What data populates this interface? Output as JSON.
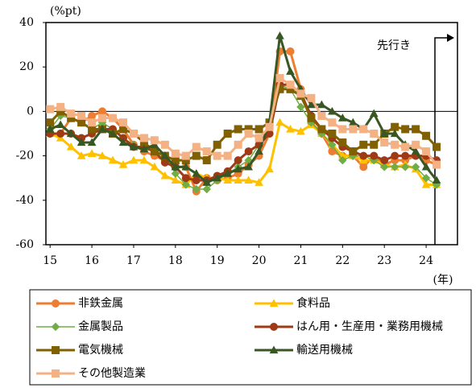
{
  "chart_data": {
    "type": "line",
    "y_unit_label": "(%pt)",
    "x_unit_label": "(年)",
    "annotation": "先行き",
    "x": [
      15,
      15.25,
      15.5,
      15.75,
      16,
      16.25,
      16.5,
      16.75,
      17,
      17.25,
      17.5,
      17.75,
      18,
      18.25,
      18.5,
      18.75,
      19,
      19.25,
      19.5,
      19.75,
      20,
      20.25,
      20.5,
      20.75,
      21,
      21.25,
      21.5,
      21.75,
      22,
      22.25,
      22.5,
      22.75,
      23,
      23.25,
      23.5,
      23.75,
      24,
      24.25
    ],
    "xlim": [
      14.9,
      24.75
    ],
    "xticks": [
      15,
      16,
      17,
      18,
      19,
      20,
      21,
      22,
      23,
      24
    ],
    "ylim": [
      -60,
      40
    ],
    "yticks": [
      -60,
      -40,
      -20,
      0,
      20,
      40
    ],
    "series": [
      {
        "name": "非鉄金属",
        "color": "#ED7D31",
        "marker": "circle",
        "values": [
          -10,
          -10,
          -3,
          -5,
          -2,
          0,
          -3,
          -8,
          -15,
          -18,
          -20,
          -22,
          -25,
          -25,
          -36,
          -30,
          -31,
          -30,
          -28,
          -24,
          -20,
          -10,
          27,
          27,
          10,
          -5,
          -10,
          -18,
          -20,
          -20,
          -25,
          -20,
          -24,
          -22,
          -22,
          -20,
          -22,
          -24
        ]
      },
      {
        "name": "食料品",
        "color": "#FFC000",
        "marker": "triangle",
        "values": [
          -10,
          -12,
          -16,
          -20,
          -19,
          -20,
          -22,
          -24,
          -22,
          -22,
          -25,
          -29,
          -31,
          -33,
          -28,
          -30,
          -30,
          -31,
          -31,
          -31,
          -32,
          -26,
          -5,
          -8,
          -9,
          -6,
          -10,
          -15,
          -20,
          -20,
          -22,
          -22,
          -24,
          -25,
          -24,
          -26,
          -33,
          -33
        ]
      },
      {
        "name": "金属製品",
        "color": "#70AD47",
        "marker": "diamond",
        "values": [
          -8,
          -2,
          -3,
          -5,
          -8,
          -5,
          -8,
          -12,
          -15,
          -17,
          -18,
          -20,
          -28,
          -33,
          -35,
          -35,
          -31,
          -28,
          -25,
          -22,
          -15,
          -10,
          12,
          10,
          2,
          -5,
          -10,
          -15,
          -22,
          -20,
          -20,
          -22,
          -25,
          -25,
          -25,
          -25,
          -30,
          -33
        ]
      },
      {
        "name": "はん用・生産用・業務用機械",
        "color": "#9E3B16",
        "marker": "circle",
        "values": [
          -10,
          -10,
          -10,
          -12,
          -10,
          -8,
          -8,
          -12,
          -16,
          -16,
          -18,
          -23,
          -25,
          -30,
          -31,
          -31,
          -29,
          -27,
          -22,
          -18,
          -15,
          -10,
          12,
          12,
          8,
          -2,
          -8,
          -12,
          -16,
          -18,
          -20,
          -20,
          -22,
          -20,
          -20,
          -20,
          -20,
          -22
        ]
      },
      {
        "name": "電気機械",
        "color": "#806000",
        "marker": "square",
        "values": [
          -5,
          0,
          -3,
          -5,
          -8,
          -8,
          -10,
          -8,
          -10,
          -14,
          -18,
          -20,
          -22,
          -22,
          -20,
          -22,
          -15,
          -10,
          -8,
          -8,
          -8,
          -5,
          10,
          10,
          7,
          -3,
          -8,
          -10,
          -14,
          -18,
          -15,
          -15,
          -10,
          -7,
          -8,
          -8,
          -11,
          -16
        ]
      },
      {
        "name": "輸送用機械",
        "color": "#385723",
        "marker": "triangle",
        "values": [
          -8,
          -6,
          -10,
          -14,
          -14,
          -8,
          -10,
          -14,
          -16,
          -17,
          -15,
          -20,
          -25,
          -25,
          -28,
          -32,
          -30,
          -28,
          -26,
          -25,
          -18,
          -5,
          34,
          18,
          10,
          3,
          3,
          0,
          -3,
          -5,
          -8,
          -1,
          -10,
          -10,
          -15,
          -18,
          -25,
          -31
        ]
      },
      {
        "name": "その他製造業",
        "color": "#F4B183",
        "marker": "square",
        "values": [
          1,
          2,
          -1,
          -2,
          -5,
          -3,
          -3,
          -5,
          -10,
          -12,
          -13,
          -15,
          -19,
          -20,
          -16,
          -18,
          -20,
          -20,
          -15,
          -10,
          -12,
          -7,
          15,
          12,
          8,
          6,
          -2,
          -5,
          -8,
          -8,
          -8,
          -10,
          -14,
          -15,
          -16,
          -15,
          -18,
          -24
        ]
      }
    ]
  }
}
